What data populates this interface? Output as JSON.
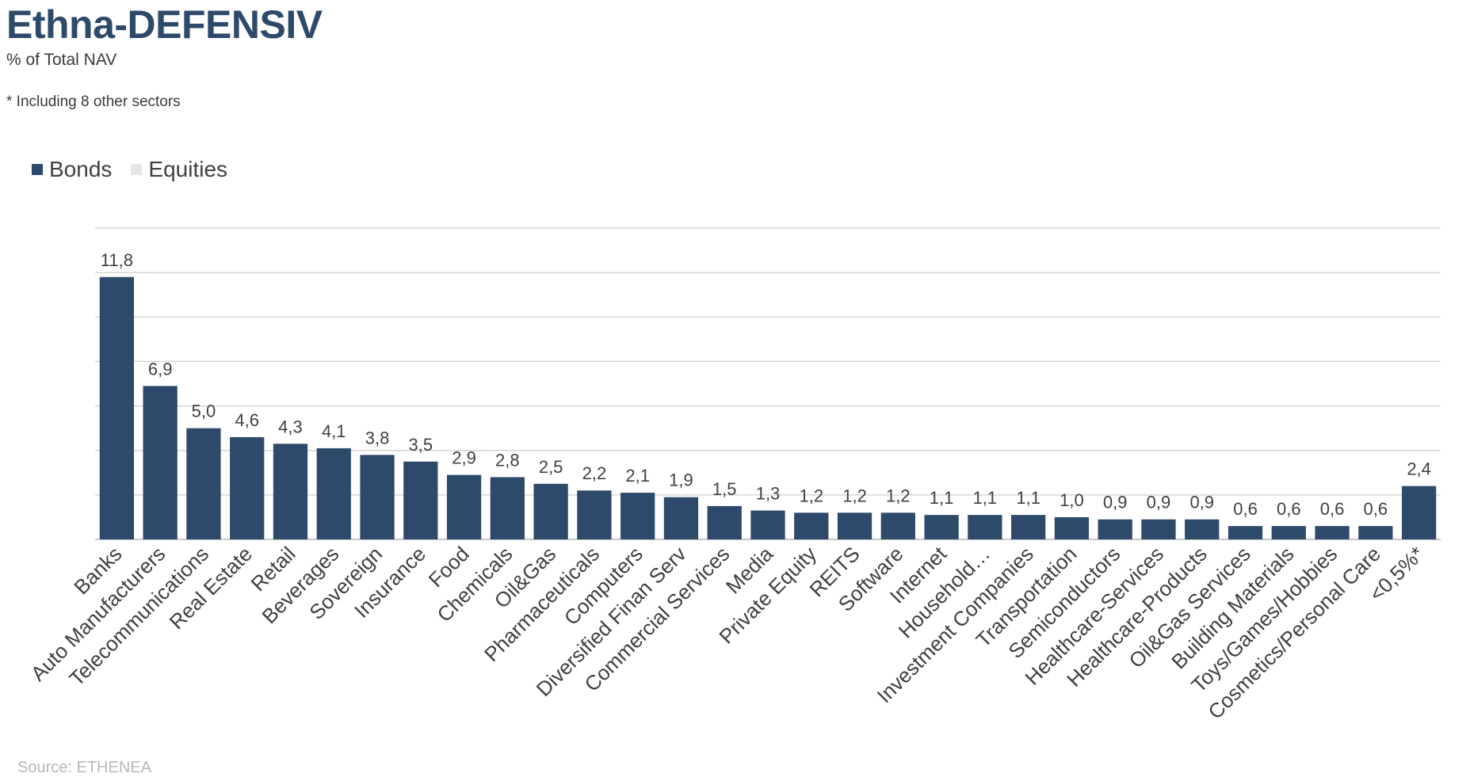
{
  "header": {
    "title": "Ethna-DEFENSIV",
    "subtitle": "% of Total NAV",
    "footnote": "* Including 8 other sectors"
  },
  "legend": {
    "items": [
      {
        "label": "Bonds",
        "color": "#2e4a6b"
      },
      {
        "label": "Equities",
        "color": "#e6e6e6"
      }
    ]
  },
  "source": "Source: ETHENEA",
  "chart_data": {
    "type": "bar",
    "categories": [
      "Banks",
      "Auto Manufacturers",
      "Telecommunications",
      "Real Estate",
      "Retail",
      "Beverages",
      "Sovereign",
      "Insurance",
      "Food",
      "Chemicals",
      "Oil&Gas",
      "Pharmaceuticals",
      "Computers",
      "Diversified Finan Serv",
      "Commercial Services",
      "Media",
      "Private Equity",
      "REITS",
      "Software",
      "Internet",
      "Household…",
      "Investment Companies",
      "Transportation",
      "Semiconductors",
      "Healthcare-Services",
      "Healthcare-Products",
      "Oil&Gas Services",
      "Building Materials",
      "Toys/Games/Hobbies",
      "Cosmetics/Personal Care",
      "<0,5%*"
    ],
    "series": [
      {
        "name": "Bonds",
        "color": "#2e4a6b",
        "values": [
          11.8,
          6.9,
          5.0,
          4.6,
          4.3,
          4.1,
          3.8,
          3.5,
          2.9,
          2.8,
          2.5,
          2.2,
          2.1,
          1.9,
          1.5,
          1.3,
          1.2,
          1.2,
          1.2,
          1.1,
          1.1,
          1.1,
          1.0,
          0.9,
          0.9,
          0.9,
          0.6,
          0.6,
          0.6,
          0.6,
          2.4
        ]
      }
    ],
    "data_labels": [
      "11,8",
      "6,9",
      "5,0",
      "4,6",
      "4,3",
      "4,1",
      "3,8",
      "3,5",
      "2,9",
      "2,8",
      "2,5",
      "2,2",
      "2,1",
      "1,9",
      "1,5",
      "1,3",
      "1,2",
      "1,2",
      "1,2",
      "1,1",
      "1,1",
      "1,1",
      "1,0",
      "0,9",
      "0,9",
      "0,9",
      "0,6",
      "0,6",
      "0,6",
      "0,6",
      "2,4"
    ],
    "ylim": [
      0,
      14
    ],
    "grid": true,
    "legend_position": "top-left"
  }
}
